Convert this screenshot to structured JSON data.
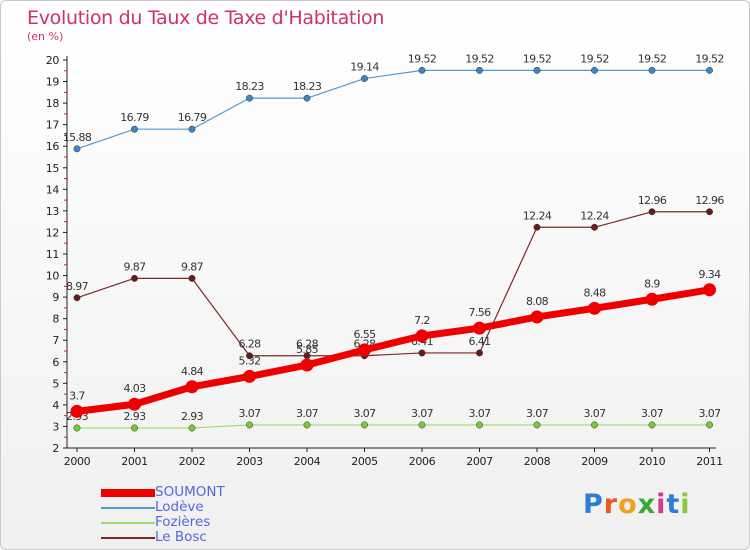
{
  "header": {
    "title": "Evolution du Taux de Taxe d'Habitation",
    "subtitle": "(en %)"
  },
  "logo": {
    "text": "Proxiti",
    "letter_colors": [
      "#2a7fd4",
      "#e85a1e",
      "#f2a020",
      "#39a839",
      "#d43a8a",
      "#2a7fd4",
      "#8cc63f"
    ]
  },
  "chart_data": {
    "type": "line",
    "x": [
      2000,
      2001,
      2002,
      2003,
      2004,
      2005,
      2006,
      2007,
      2008,
      2009,
      2010,
      2011
    ],
    "ylim": [
      2,
      20
    ],
    "yticks": [
      2,
      3,
      4,
      5,
      6,
      7,
      8,
      9,
      10,
      11,
      12,
      13,
      14,
      15,
      16,
      17,
      18,
      19,
      20
    ],
    "grid": false,
    "legend_position": "bottom-left",
    "series": [
      {
        "name": "Lodève",
        "color": "#5599cc",
        "marker_color": "#3a86c8",
        "values": [
          15.88,
          16.79,
          16.79,
          18.23,
          18.23,
          19.14,
          19.52,
          19.52,
          19.52,
          19.52,
          19.52,
          19.52
        ],
        "labels": [
          "15.88",
          "16.79",
          "16.79",
          "18.23",
          "18.23",
          "19.14",
          "19.52",
          "19.52",
          "19.52",
          "19.52",
          "19.52",
          "19.52"
        ]
      },
      {
        "name": "Le Bosc",
        "color": "#7a2a2a",
        "marker_color": "#6a1a1a",
        "values": [
          8.97,
          9.87,
          9.87,
          6.28,
          6.28,
          6.28,
          6.41,
          6.41,
          12.24,
          12.24,
          12.96,
          12.96
        ],
        "labels": [
          "8.97",
          "9.87",
          "9.87",
          "6.28",
          "6.28",
          "6.28",
          "6.41",
          "6.41",
          "12.24",
          "12.24",
          "12.96",
          "12.96"
        ]
      },
      {
        "name": "Fozières",
        "color": "#99dd66",
        "marker_color": "#77cc33",
        "values": [
          2.93,
          2.93,
          2.93,
          3.07,
          3.07,
          3.07,
          3.07,
          3.07,
          3.07,
          3.07,
          3.07,
          3.07
        ],
        "labels": [
          "2.93",
          "2.93",
          "2.93",
          "3.07",
          "3.07",
          "3.07",
          "3.07",
          "3.07",
          "3.07",
          "3.07",
          "3.07",
          "3.07"
        ]
      },
      {
        "name": "SOUMONT",
        "color": "#ee0000",
        "marker_color": "#ee0000",
        "values": [
          3.7,
          4.03,
          4.84,
          5.32,
          5.85,
          6.55,
          7.2,
          7.56,
          8.08,
          8.48,
          8.9,
          9.34
        ],
        "labels": [
          "3.7",
          "4.03",
          "4.84",
          "5.32",
          "5.85",
          "6.55",
          "7.2",
          "7.56",
          "8.08",
          "8.48",
          "8.9",
          "9.34"
        ]
      }
    ],
    "legend": [
      {
        "name": "SOUMONT",
        "color": "#ee0000"
      },
      {
        "name": "Lodève",
        "color": "#5599cc"
      },
      {
        "name": "Fozières",
        "color": "#99dd66"
      },
      {
        "name": "Le Bosc",
        "color": "#7a2a2a"
      }
    ]
  }
}
